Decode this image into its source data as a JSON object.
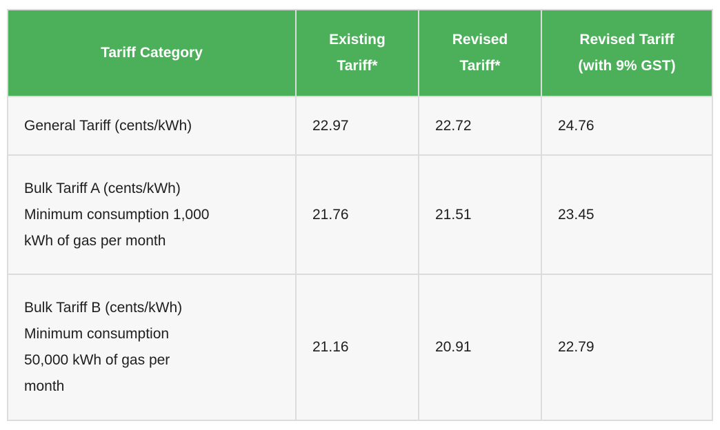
{
  "colors": {
    "header_bg": "#4caf5a",
    "header_text": "#ffffff",
    "cell_bg": "#f7f7f7",
    "border": "#dcdcdc",
    "body_text": "#1e1e1e",
    "page_bg": "#ffffff"
  },
  "table": {
    "headers": [
      {
        "lines": [
          "Tariff Category"
        ]
      },
      {
        "lines": [
          "Existing",
          "Tariff*"
        ]
      },
      {
        "lines": [
          "Revised",
          "Tariff*"
        ]
      },
      {
        "lines": [
          "Revised Tariff",
          "(with 9% GST)"
        ]
      }
    ],
    "rows": [
      {
        "category_lines": [
          "General Tariff (cents/kWh)"
        ],
        "values": [
          "22.97",
          "22.72",
          "24.76"
        ]
      },
      {
        "category_lines": [
          "Bulk Tariff A (cents/kWh)",
          "Minimum consumption 1,000",
          "kWh of gas per month"
        ],
        "values": [
          "21.76",
          "21.51",
          "23.45"
        ]
      },
      {
        "category_lines": [
          "Bulk Tariff B (cents/kWh)",
          "Minimum consumption",
          "50,000 kWh of gas per",
          "month"
        ],
        "values": [
          "21.16",
          "20.91",
          "22.79"
        ]
      }
    ]
  },
  "chart_data": {
    "type": "table",
    "title": "",
    "columns": [
      "Tariff Category",
      "Existing Tariff*",
      "Revised Tariff*",
      "Revised Tariff (with 9% GST)"
    ],
    "rows": [
      [
        "General Tariff (cents/kWh)",
        22.97,
        22.72,
        24.76
      ],
      [
        "Bulk Tariff A (cents/kWh) Minimum consumption 1,000 kWh of gas per month",
        21.76,
        21.51,
        23.45
      ],
      [
        "Bulk Tariff B (cents/kWh) Minimum consumption 50,000 kWh of gas per month",
        21.16,
        20.91,
        22.79
      ]
    ],
    "units": "cents/kWh",
    "layout": {
      "header_background": "#4caf5a",
      "grid": true
    }
  }
}
